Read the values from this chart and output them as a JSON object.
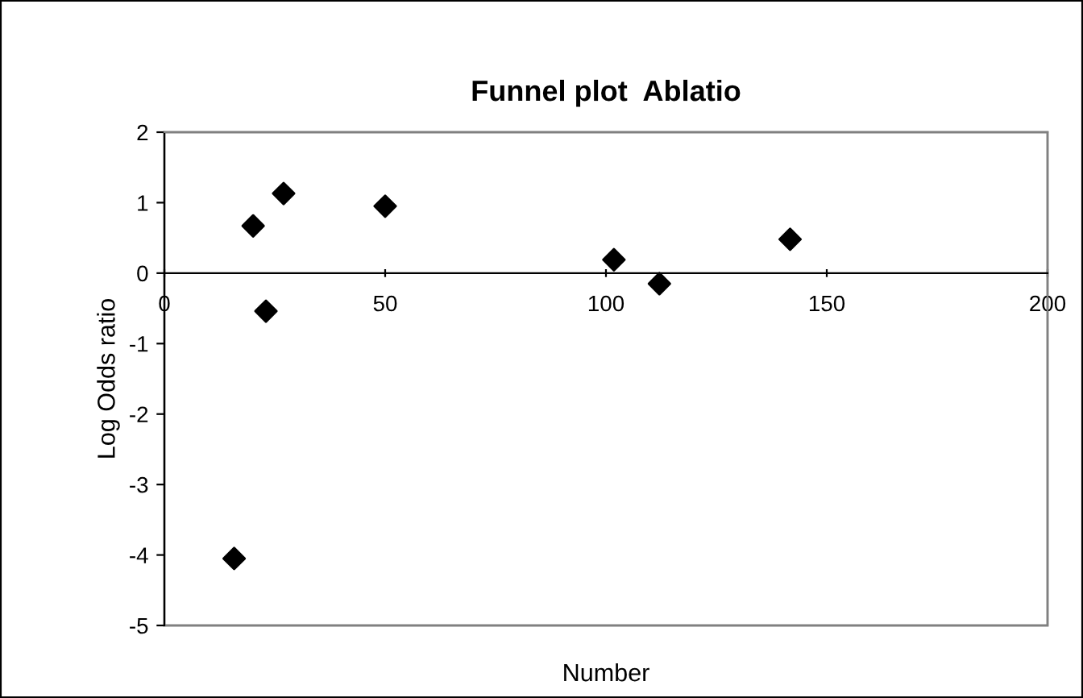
{
  "chart_data": {
    "type": "scatter",
    "title": "Funnel plot  Ablatio",
    "xlabel": "Number",
    "ylabel": "Log Odds ratio",
    "x": [
      15.8,
      20.1,
      23,
      27,
      50,
      101.8,
      112.1,
      141.7
    ],
    "values": [
      -4.05,
      0.67,
      -0.54,
      1.13,
      0.95,
      0.19,
      -0.15,
      0.48
    ],
    "color": "#000000",
    "marker": "diamond",
    "xlim": [
      0,
      200
    ],
    "xticks": [
      0,
      50,
      100,
      150,
      200
    ],
    "ylim": [
      -5,
      2
    ],
    "yticks": [
      -5,
      -4,
      -3,
      -2,
      -1,
      0,
      1,
      2
    ],
    "grid": false,
    "legend": false
  }
}
